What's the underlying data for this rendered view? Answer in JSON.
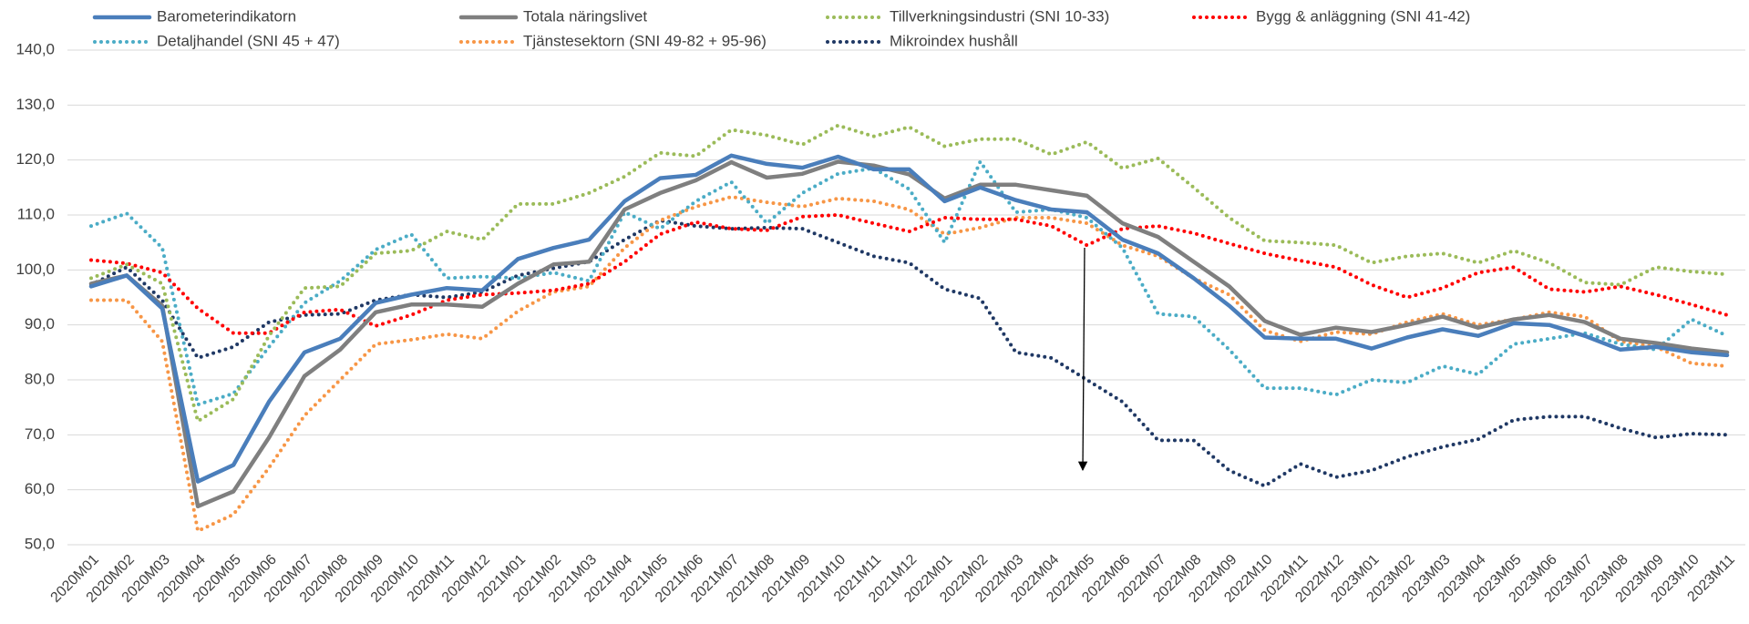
{
  "chart_data": {
    "type": "line",
    "categories": [
      "2020M01",
      "2020M02",
      "2020M03",
      "2020M04",
      "2020M05",
      "2020M06",
      "2020M07",
      "2020M08",
      "2020M09",
      "2020M10",
      "2020M11",
      "2020M12",
      "2021M01",
      "2021M02",
      "2021M03",
      "2021M04",
      "2021M05",
      "2021M06",
      "2021M07",
      "2021M08",
      "2021M09",
      "2021M10",
      "2021M11",
      "2021M12",
      "2022M01",
      "2022M02",
      "2022M03",
      "2022M04",
      "2022M05",
      "2022M06",
      "2022M07",
      "2022M08",
      "2022M09",
      "2022M10",
      "2022M11",
      "2022M12",
      "2023M01",
      "2023M02",
      "2023M03",
      "2023M04",
      "2023M05",
      "2023M06",
      "2023M07",
      "2023M08",
      "2023M09",
      "2023M10",
      "2023M11"
    ],
    "series": [
      {
        "name": "Barometerindikatorn",
        "color": "#4a7ebb",
        "style": "solid",
        "values": [
          97,
          99,
          93,
          61.5,
          64.5,
          76,
          85,
          87.5,
          94,
          95.5,
          96.7,
          96.3,
          102,
          104,
          105.5,
          112.5,
          116.7,
          117.3,
          120.8,
          119.3,
          118.6,
          120.6,
          118.3,
          118.3,
          112.5,
          115,
          112.7,
          111,
          110.5,
          105.5,
          103,
          98.5,
          93.5,
          87.7,
          87.5,
          87.5,
          85.7,
          87.7,
          89.2,
          88,
          90.3,
          90,
          88,
          85.5,
          86,
          85,
          84.5
        ]
      },
      {
        "name": "Totala näringslivet",
        "color": "#7f7f7f",
        "style": "solid",
        "values": [
          97.5,
          99,
          93.5,
          57,
          59.7,
          69.5,
          80.7,
          85.5,
          92.3,
          93.7,
          93.7,
          93.3,
          97.5,
          101,
          101.5,
          111,
          114,
          116.3,
          119.6,
          116.8,
          117.5,
          119.7,
          119,
          117.4,
          113,
          115.5,
          115.5,
          114.5,
          113.5,
          108.5,
          106,
          101.5,
          97,
          90.7,
          88.2,
          89.5,
          88.7,
          90,
          91.5,
          89.5,
          91,
          91.8,
          90.5,
          87.5,
          86.7,
          85.7,
          85
        ]
      },
      {
        "name": "Tillverkningsindustri (SNI 10-33)",
        "color": "#9bbb59",
        "style": "dotted",
        "values": [
          98.5,
          101,
          97.5,
          72.5,
          76.5,
          88,
          96.7,
          97,
          103,
          103.5,
          107,
          105.5,
          112,
          112,
          114,
          117,
          121.3,
          120.7,
          125.5,
          124.5,
          122.8,
          126.3,
          124.3,
          126,
          122.5,
          123.8,
          123.8,
          121,
          123.3,
          118.5,
          120.3,
          115,
          109.5,
          105.3,
          105,
          104.5,
          101.3,
          102.5,
          103,
          101.3,
          103.5,
          101.3,
          97.7,
          97.3,
          100.5,
          99.7,
          99.2
        ]
      },
      {
        "name": "Bygg & anläggning (SNI 41-42)",
        "color": "#ff0000",
        "style": "dotted",
        "values": [
          101.8,
          101.2,
          99.5,
          93,
          88.5,
          88.5,
          92.3,
          92.8,
          89.8,
          91.8,
          94.5,
          95.5,
          95.8,
          96.3,
          97.5,
          101.5,
          106.5,
          108.7,
          107.5,
          107.2,
          109.7,
          110,
          108.5,
          107,
          109.5,
          109.2,
          109.2,
          108,
          104.5,
          107.5,
          108,
          106.7,
          104.8,
          103,
          101.7,
          100.5,
          97.3,
          95,
          96.7,
          99.5,
          100.5,
          96.5,
          96,
          97,
          95.5,
          93.7,
          91.8
        ]
      },
      {
        "name": "Detaljhandel (SNI 45 + 47)",
        "color": "#4bacc6",
        "style": "dotted",
        "values": [
          108,
          110.3,
          104,
          75.5,
          77.5,
          86,
          94,
          98,
          103.7,
          106.5,
          98.5,
          98.8,
          98.5,
          99.5,
          98,
          110.5,
          107.5,
          112.5,
          116,
          108.5,
          114,
          117.5,
          118.5,
          114.7,
          105,
          119.7,
          110.5,
          111,
          109.5,
          104,
          92,
          91.5,
          85.5,
          78.5,
          78.5,
          77.3,
          80,
          79.5,
          82.5,
          81,
          86.5,
          87.5,
          88.5,
          86.5,
          85.5,
          91,
          88
        ]
      },
      {
        "name": "Tjänstesektorn (SNI 49-82 + 95-96)",
        "color": "#f79646",
        "style": "dotted",
        "values": [
          94.5,
          94.5,
          87,
          52.5,
          55.5,
          64,
          73.5,
          80,
          86.5,
          87.3,
          88.3,
          87.5,
          92.5,
          96,
          97,
          104,
          109,
          111.5,
          113.3,
          112.3,
          111.5,
          113,
          112.5,
          111,
          106.5,
          107.7,
          109.5,
          109.5,
          108.5,
          104.5,
          102.5,
          98.5,
          95.5,
          89,
          87,
          88.7,
          88.3,
          90.5,
          92,
          90,
          91,
          92.3,
          91.5,
          87,
          86,
          83,
          82.5
        ]
      },
      {
        "name": "Mikroindex hushåll",
        "color": "#1f3864",
        "style": "dotted",
        "values": [
          97.3,
          100.5,
          94.5,
          84,
          86,
          90.5,
          91.8,
          92,
          94.5,
          95.5,
          95,
          96,
          99,
          100.3,
          101.5,
          105.5,
          109,
          108,
          107.5,
          107.7,
          107.5,
          105,
          102.5,
          101.3,
          96.5,
          94.8,
          85,
          84,
          80,
          76,
          69,
          69,
          63.5,
          60.7,
          64.7,
          62.3,
          63.5,
          66,
          67.8,
          69.2,
          72.7,
          73.3,
          73.3,
          71.2,
          69.5,
          70.2,
          70
        ]
      }
    ],
    "ylim": [
      50,
      140
    ],
    "yticks": [
      {
        "value": 50,
        "label": "50,0"
      },
      {
        "value": 60,
        "label": "60,0"
      },
      {
        "value": 70,
        "label": "70,0"
      },
      {
        "value": 80,
        "label": "80,0"
      },
      {
        "value": 90,
        "label": "90,0"
      },
      {
        "value": 100,
        "label": "100,0"
      },
      {
        "value": 110,
        "label": "110,0"
      },
      {
        "value": 120,
        "label": "120,0"
      },
      {
        "value": 130,
        "label": "130,0"
      },
      {
        "value": 140,
        "label": "140,0"
      }
    ],
    "grid": true
  }
}
